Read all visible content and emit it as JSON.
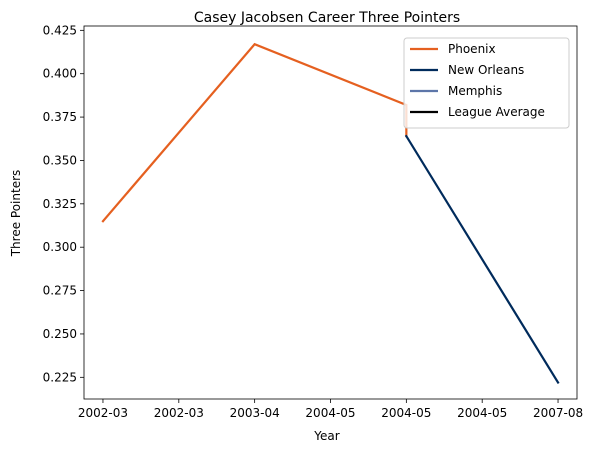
{
  "chart_data": {
    "type": "line",
    "title": "Casey Jacobsen Career Three Pointers",
    "xlabel": "Year",
    "ylabel": "Three Pointers",
    "x_tick_labels": [
      "2002-03",
      "2002-03",
      "2003-04",
      "2004-05",
      "2004-05",
      "2004-05",
      "2007-08"
    ],
    "ylim": [
      0.2125,
      0.4275
    ],
    "y_ticks": [
      0.225,
      0.25,
      0.275,
      0.3,
      0.325,
      0.35,
      0.375,
      0.4,
      0.425
    ],
    "y_tick_labels": [
      "0.225",
      "0.250",
      "0.275",
      "0.300",
      "0.325",
      "0.350",
      "0.375",
      "0.400",
      "0.425"
    ],
    "legend_position": "top-right",
    "grid": false,
    "series": [
      {
        "name": "Phoenix",
        "color": "#E56020",
        "points": [
          {
            "x": 0,
            "y": 0.315
          },
          {
            "x": 2,
            "y": 0.417
          },
          {
            "x": 4,
            "y": 0.382
          },
          {
            "x": 4,
            "y": 0.364
          }
        ]
      },
      {
        "name": "New Orleans",
        "color": "#002B5C",
        "points": [
          {
            "x": 4,
            "y": 0.364
          },
          {
            "x": 6,
            "y": 0.222
          }
        ]
      },
      {
        "name": "Memphis",
        "color": "#5D76A9",
        "points": []
      },
      {
        "name": "League Average",
        "color": "#000000",
        "points": []
      }
    ]
  }
}
